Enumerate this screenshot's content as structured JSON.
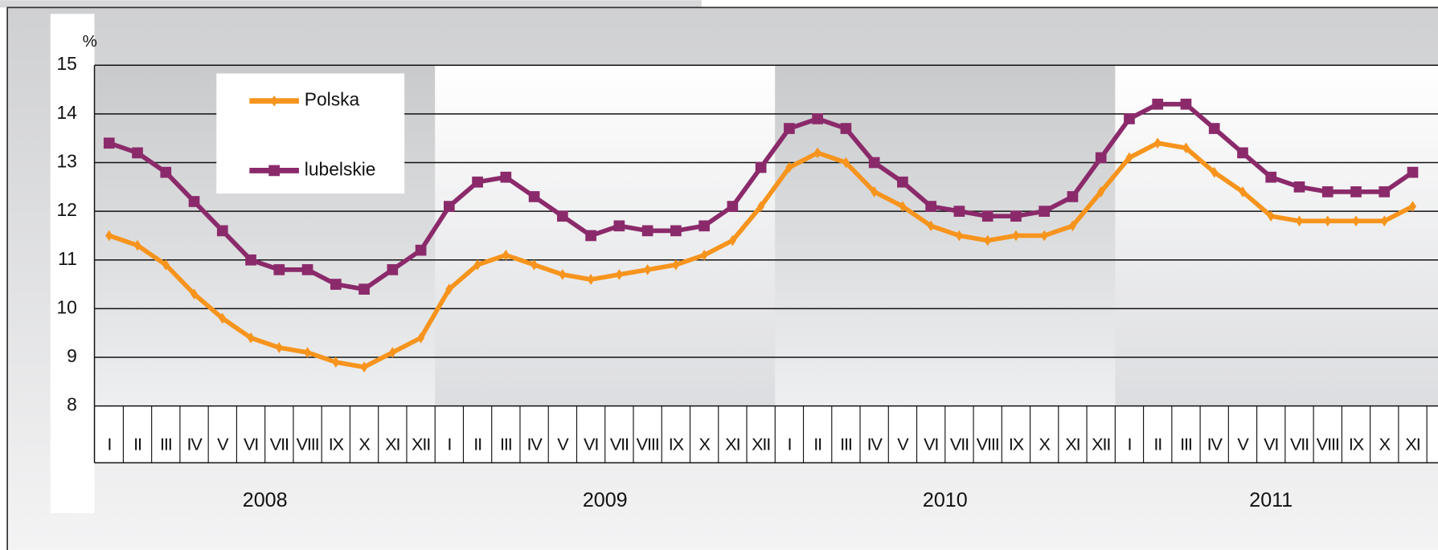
{
  "chart_data": {
    "type": "line",
    "y_unit": "%",
    "categories": [
      "I",
      "II",
      "III",
      "IV",
      "V",
      "VI",
      "VII",
      "VIII",
      "IX",
      "X",
      "XI",
      "XII",
      "I",
      "II",
      "III",
      "IV",
      "V",
      "VI",
      "VII",
      "VIII",
      "IX",
      "X",
      "XI",
      "XII",
      "I",
      "II",
      "III",
      "IV",
      "V",
      "VI",
      "VII",
      "VIII",
      "IX",
      "X",
      "XI",
      "XII",
      "I",
      "II",
      "III",
      "IV",
      "V",
      "VI",
      "VII",
      "VIII",
      "IX",
      "X",
      "XI"
    ],
    "years": [
      "2008",
      "2009",
      "2010",
      "2011"
    ],
    "series": [
      {
        "name": "Polska",
        "color": "#f7941d",
        "marker": "diamond",
        "values": [
          11.5,
          11.3,
          10.9,
          10.3,
          9.8,
          9.4,
          9.2,
          9.1,
          8.9,
          8.8,
          9.1,
          9.4,
          10.4,
          10.9,
          11.1,
          10.9,
          10.7,
          10.6,
          10.7,
          10.8,
          10.9,
          11.1,
          11.4,
          12.1,
          12.9,
          13.2,
          13.0,
          12.4,
          12.1,
          11.7,
          11.5,
          11.4,
          11.5,
          11.5,
          11.7,
          12.4,
          13.1,
          13.4,
          13.3,
          12.8,
          12.4,
          11.9,
          11.8,
          11.8,
          11.8,
          11.8,
          12.1
        ]
      },
      {
        "name": "lubelskie",
        "color": "#8b2a6b",
        "marker": "square",
        "values": [
          13.4,
          13.2,
          12.8,
          12.2,
          11.6,
          11.0,
          10.8,
          10.8,
          10.5,
          10.4,
          10.8,
          11.2,
          12.1,
          12.6,
          12.7,
          12.3,
          11.9,
          11.5,
          11.7,
          11.6,
          11.6,
          11.7,
          12.1,
          12.9,
          13.7,
          13.9,
          13.7,
          13.0,
          12.6,
          12.1,
          12.0,
          11.9,
          11.9,
          12.0,
          12.3,
          13.1,
          13.9,
          14.2,
          14.2,
          13.7,
          13.2,
          12.7,
          12.5,
          12.4,
          12.4,
          12.4,
          12.8
        ]
      }
    ],
    "ylim": [
      8,
      15
    ],
    "yticks": [
      8,
      9,
      10,
      11,
      12,
      13,
      14,
      15
    ],
    "grid": true,
    "legend": "upper left"
  }
}
